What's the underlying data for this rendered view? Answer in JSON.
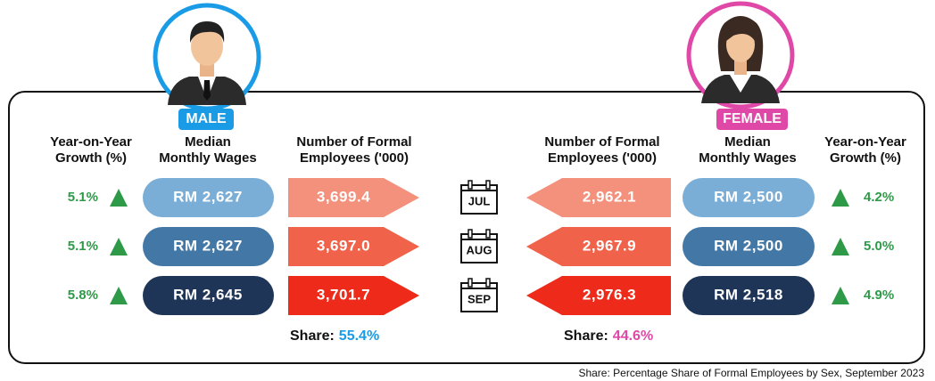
{
  "male": {
    "label": "MALE",
    "headers": {
      "growth": [
        "Year-on-Year",
        "Growth (%)"
      ],
      "wages": [
        "Median",
        "Monthly Wages"
      ],
      "employees": [
        "Number of Formal",
        "Employees ('000)"
      ]
    },
    "rows": [
      {
        "growth": "5.1%",
        "wages": "RM 2,627",
        "employees": "3,699.4"
      },
      {
        "growth": "5.1%",
        "wages": "RM 2,627",
        "employees": "3,697.0"
      },
      {
        "growth": "5.8%",
        "wages": "RM 2,645",
        "employees": "3,701.7"
      }
    ],
    "share_label": "Share:",
    "share": "55.4%"
  },
  "female": {
    "label": "FEMALE",
    "headers": {
      "growth": [
        "Year-on-Year",
        "Growth (%)"
      ],
      "wages": [
        "Median",
        "Monthly Wages"
      ],
      "employees": [
        "Number of Formal",
        "Employees ('000)"
      ]
    },
    "rows": [
      {
        "growth": "4.2%",
        "wages": "RM 2,500",
        "employees": "2,962.1"
      },
      {
        "growth": "5.0%",
        "wages": "RM 2,500",
        "employees": "2,967.9"
      },
      {
        "growth": "4.9%",
        "wages": "RM 2,518",
        "employees": "2,976.3"
      }
    ],
    "share_label": "Share:",
    "share": "44.6%"
  },
  "months": [
    "JUL",
    "AUG",
    "SEP"
  ],
  "footnote": "Share: Percentage Share of Formal Employees by Sex, September 2023"
}
